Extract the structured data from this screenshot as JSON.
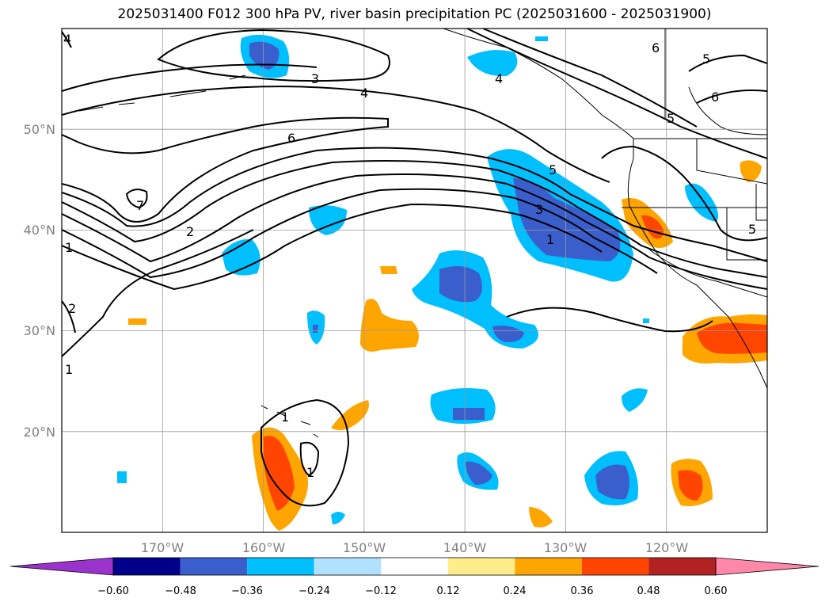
{
  "title": "2025031400 F012 300 hPa PV, river basin precipitation PC (2025031600 - 2025031900)",
  "map": {
    "projection": "equirectangular",
    "lon_range": [
      -180,
      -110
    ],
    "lat_range": [
      10,
      60
    ],
    "gridlines": true,
    "lat_labels": [
      "20°N",
      "30°N",
      "40°N",
      "50°N"
    ],
    "lon_labels": [
      "170°W",
      "160°W",
      "150°W",
      "140°W",
      "130°W",
      "120°W"
    ],
    "contour_field": "300 hPa PV",
    "contour_labels": [
      "1",
      "2",
      "3",
      "4",
      "5",
      "6",
      "7"
    ],
    "fill_field": "river basin precipitation PC"
  },
  "colorbar": {
    "ticks": [
      "−0.60",
      "−0.48",
      "−0.36",
      "−0.24",
      "−0.12",
      "0.12",
      "0.24",
      "0.36",
      "0.48",
      "0.60"
    ],
    "colors": [
      "#9933cc",
      "#00008b",
      "#3a5fcd",
      "#00bfff",
      "#b0e2ff",
      "#ffffff",
      "#ffec8b",
      "#ffa500",
      "#ff4500",
      "#b22222",
      "#ff88aa"
    ]
  }
}
